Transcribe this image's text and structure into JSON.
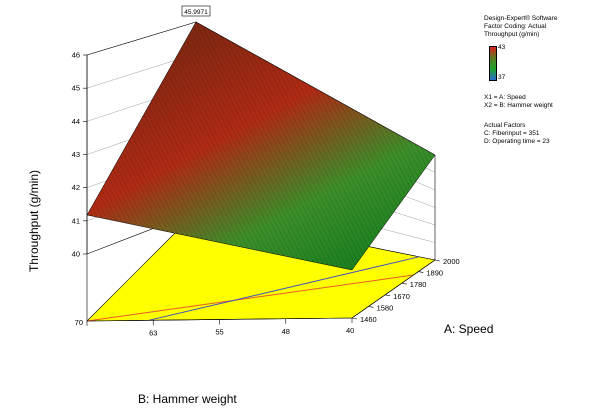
{
  "info": {
    "lines": [
      "Design-Expert® Software",
      "Factor Coding: Actual",
      "Throughput (g/min)"
    ],
    "colorbar": {
      "high": "43",
      "low": "37",
      "colors": [
        "#e0221e",
        "#5a7a22",
        "#1ca52a",
        "#2a6ad0"
      ]
    },
    "factor_lines": [
      "X1 = A: Speed",
      "X2 = B: Hammer weight"
    ],
    "actual_title": "Actual Factors",
    "actual_lines": [
      "C: Fiberinput = 351",
      "D: Operating time = 23"
    ]
  },
  "chart_data": {
    "type": "surface",
    "zlabel": "Throughput (g/min)",
    "xlabel": "A: Speed",
    "ylabel": "B: Hammer weight",
    "x_ticks": [
      "1460",
      "1580",
      "1670",
      "1780",
      "1890",
      "2000"
    ],
    "y_ticks": [
      "70",
      "63",
      "55",
      "48",
      "40"
    ],
    "z_ticks": [
      "40",
      "41",
      "42",
      "43",
      "44",
      "45",
      "46"
    ],
    "xlim": [
      1460,
      2000
    ],
    "ylim": [
      40,
      70
    ],
    "zlim": [
      40,
      46
    ],
    "peak_label": "45.9971",
    "surface_z": {
      "A1460_B40": 40.7,
      "A1460_B70": 41.9,
      "A2000_B40": 43.2,
      "A2000_B70": 45.9971
    },
    "floor_color": "#ffff00",
    "surface_colors": [
      "#0c7a1a",
      "#3c8f2a",
      "#b02a14",
      "#7c2812"
    ],
    "contours": [
      {
        "color": "#e85a2a",
        "from": "70,1460",
        "to": "40,1860"
      },
      {
        "color": "#3b4fc4",
        "from": "63,1460",
        "to": "42,2000"
      }
    ]
  }
}
